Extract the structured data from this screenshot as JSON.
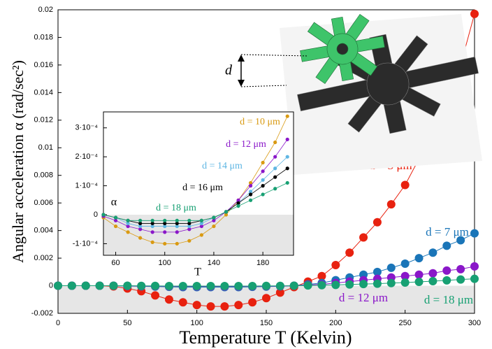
{
  "chart_data": [
    {
      "type": "line",
      "x_label": "Temperature T (Kelvin)",
      "y_label": "Angular acceleration α (rad/sec²)",
      "annotation": "d",
      "x": [
        0,
        10,
        20,
        30,
        40,
        50,
        60,
        70,
        80,
        90,
        100,
        110,
        120,
        130,
        140,
        150,
        160,
        170,
        180,
        190,
        200,
        210,
        220,
        230,
        240,
        250,
        260,
        270,
        280,
        290,
        300
      ],
      "xlim": [
        0,
        300
      ],
      "xticks": [
        0,
        50,
        100,
        150,
        200,
        250,
        300
      ],
      "ylim": [
        -0.002,
        0.02
      ],
      "yticks": [
        -0.002,
        0,
        0.002,
        0.004,
        0.006,
        0.008,
        0.01,
        0.012,
        0.014,
        0.016,
        0.018,
        0.02
      ],
      "shade_negative": true,
      "series": [
        {
          "name": "d = 3 μm",
          "color": "#e8210f",
          "values": [
            0,
            0,
            0,
            0,
            -5e-05,
            -0.0002,
            -0.0004,
            -0.0007,
            -0.001,
            -0.0012,
            -0.0014,
            -0.0015,
            -0.0015,
            -0.0014,
            -0.0012,
            -0.0009,
            -0.0005,
            -0.0001,
            0.0003,
            0.0007,
            0.0015,
            0.0024,
            0.0035,
            0.0046,
            0.0059,
            0.0073,
            0.0092,
            0.0111,
            0.0133,
            0.016,
            0.0197
          ]
        },
        {
          "name": "d = 7 μm",
          "color": "#1a75b8",
          "values": [
            0,
            0,
            0,
            0,
            0,
            -2e-05,
            -4e-05,
            -6e-05,
            -8e-05,
            -0.0001,
            -0.0001,
            -0.0001,
            -0.0001,
            -0.0001,
            -8e-05,
            -6e-05,
            -4e-05,
            0,
            0.0001,
            0.0002,
            0.0004,
            0.0006,
            0.0008,
            0.001,
            0.0013,
            0.0016,
            0.002,
            0.0024,
            0.0029,
            0.0033,
            0.0038
          ]
        },
        {
          "name": "d = 12 μm",
          "color": "#8a17c9",
          "values": [
            0,
            0,
            0,
            0,
            0,
            -1e-05,
            -2e-05,
            -3e-05,
            -4e-05,
            -5e-05,
            -5e-05,
            -5e-05,
            -5e-05,
            -5e-05,
            -4e-05,
            -3e-05,
            -2e-05,
            0,
            5e-05,
            0.0001,
            0.0002,
            0.0003,
            0.0004,
            0.0005,
            0.0006,
            0.0007,
            0.0008,
            0.0009,
            0.0011,
            0.0012,
            0.0014
          ]
        },
        {
          "name": "d = 18 μm",
          "color": "#17a073",
          "values": [
            0,
            0,
            0,
            0,
            0,
            0,
            -1e-05,
            -1e-05,
            -2e-05,
            -2e-05,
            -2e-05,
            -2e-05,
            -2e-05,
            -2e-05,
            -2e-05,
            -1e-05,
            -1e-05,
            0,
            2e-05,
            4e-05,
            6e-05,
            9e-05,
            0.00012,
            0.00015,
            0.00019,
            0.00023,
            0.00028,
            0.00033,
            0.00039,
            0.00045,
            0.0005
          ]
        }
      ]
    },
    {
      "type": "line",
      "x_label": "T",
      "y_label": "α",
      "x": [
        50,
        60,
        70,
        80,
        90,
        100,
        110,
        120,
        130,
        140,
        150,
        160,
        170,
        180,
        190,
        200
      ],
      "xlim": [
        50,
        205
      ],
      "xticks": [
        60,
        100,
        140,
        180
      ],
      "ylim": [
        -0.00014,
        0.000355
      ],
      "yticks": [
        {
          "value": -0.0001,
          "label": "-1·10⁻⁴"
        },
        0,
        {
          "value": 0.0001,
          "label": "1·10⁻⁴"
        },
        {
          "value": 0.0002,
          "label": "2·10⁻⁴"
        },
        {
          "value": 0.0003,
          "label": "3·10⁻⁴"
        }
      ],
      "shade_negative": true,
      "series": [
        {
          "name": "d = 10 μm",
          "color": "#d99a12",
          "values": [
            -1e-05,
            -4e-05,
            -6e-05,
            -8e-05,
            -9.5e-05,
            -0.0001,
            -0.0001,
            -9e-05,
            -7e-05,
            -4e-05,
            0,
            5e-05,
            0.00011,
            0.00018,
            0.00025,
            0.00034
          ]
        },
        {
          "name": "d = 12 μm",
          "color": "#8a17c9",
          "values": [
            -5e-06,
            -2e-05,
            -4e-05,
            -5e-05,
            -6e-05,
            -6e-05,
            -6e-05,
            -5e-05,
            -4e-05,
            -2e-05,
            1e-05,
            5e-05,
            0.0001,
            0.00015,
            0.0002,
            0.00026
          ]
        },
        {
          "name": "d = 14 μm",
          "color": "#5fb6e3",
          "values": [
            0,
            -1e-05,
            -3e-05,
            -4e-05,
            -4e-05,
            -4e-05,
            -4e-05,
            -4e-05,
            -3e-05,
            -1e-05,
            1e-05,
            4e-05,
            8e-05,
            0.00012,
            0.00016,
            0.0002
          ]
        },
        {
          "name": "d = 16 μm",
          "color": "#000000",
          "values": [
            0,
            -1e-05,
            -2e-05,
            -3e-05,
            -3e-05,
            -3e-05,
            -3e-05,
            -3e-05,
            -2e-05,
            -1e-05,
            1e-05,
            4e-05,
            7e-05,
            0.0001,
            0.00013,
            0.00016
          ]
        },
        {
          "name": "d = 18 μm",
          "color": "#17a073",
          "values": [
            0,
            -1e-05,
            -2e-05,
            -2e-05,
            -2e-05,
            -2e-05,
            -2e-05,
            -2e-05,
            -2e-05,
            -1e-05,
            1e-05,
            3e-05,
            5e-05,
            7e-05,
            9e-05,
            0.00011
          ]
        }
      ]
    }
  ]
}
